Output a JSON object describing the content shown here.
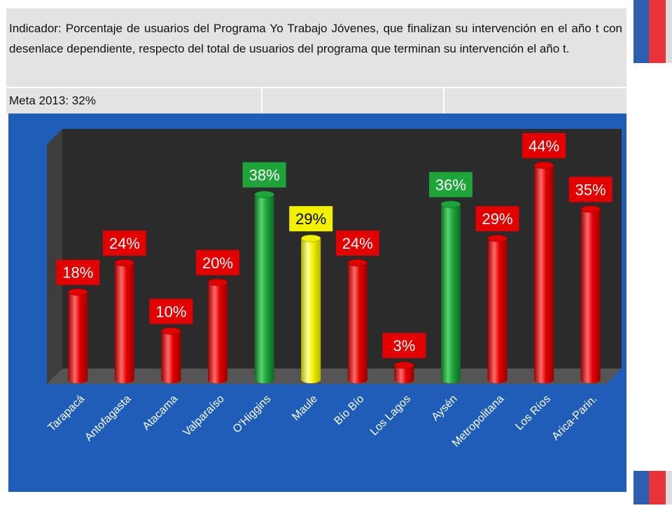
{
  "header": {
    "indicator": "Indicador: Porcentaje de usuarios del Programa Yo Trabajo Jóvenes, que finalizan su intervención en el año t con desenlace dependiente, respecto del total de usuarios del programa que terminan su intervención el año t.",
    "meta": "Meta 2013: 32%"
  },
  "colors": {
    "panel": "#1f5db8",
    "red": "#e30000",
    "green": "#1ea53a",
    "yellow": "#f2f200",
    "deco_red": "#e8333a",
    "deco_blue": "#2c5fb0"
  },
  "chart_data": {
    "type": "bar",
    "categories": [
      "Tarapacá",
      "Antofagasta",
      "Atacama",
      "Valparaíso",
      "O'Higgins",
      "Maule",
      "Bío Bío",
      "Los Lagos",
      "Aysén",
      "Metropolitana",
      "Los Ríos",
      "Arica-Parin."
    ],
    "values": [
      18,
      24,
      10,
      20,
      38,
      29,
      24,
      3,
      36,
      29,
      44,
      35
    ],
    "labels": [
      "18%",
      "24%",
      "10%",
      "20%",
      "38%",
      "29%",
      "24%",
      "3%",
      "36%",
      "29%",
      "44%",
      "35%"
    ],
    "bar_colors": [
      "red",
      "red",
      "red",
      "red",
      "green",
      "yellow",
      "red",
      "red",
      "green",
      "red",
      "red",
      "red"
    ],
    "unit": "%",
    "ylim": [
      0,
      50
    ],
    "grid": false,
    "legend": "none"
  }
}
